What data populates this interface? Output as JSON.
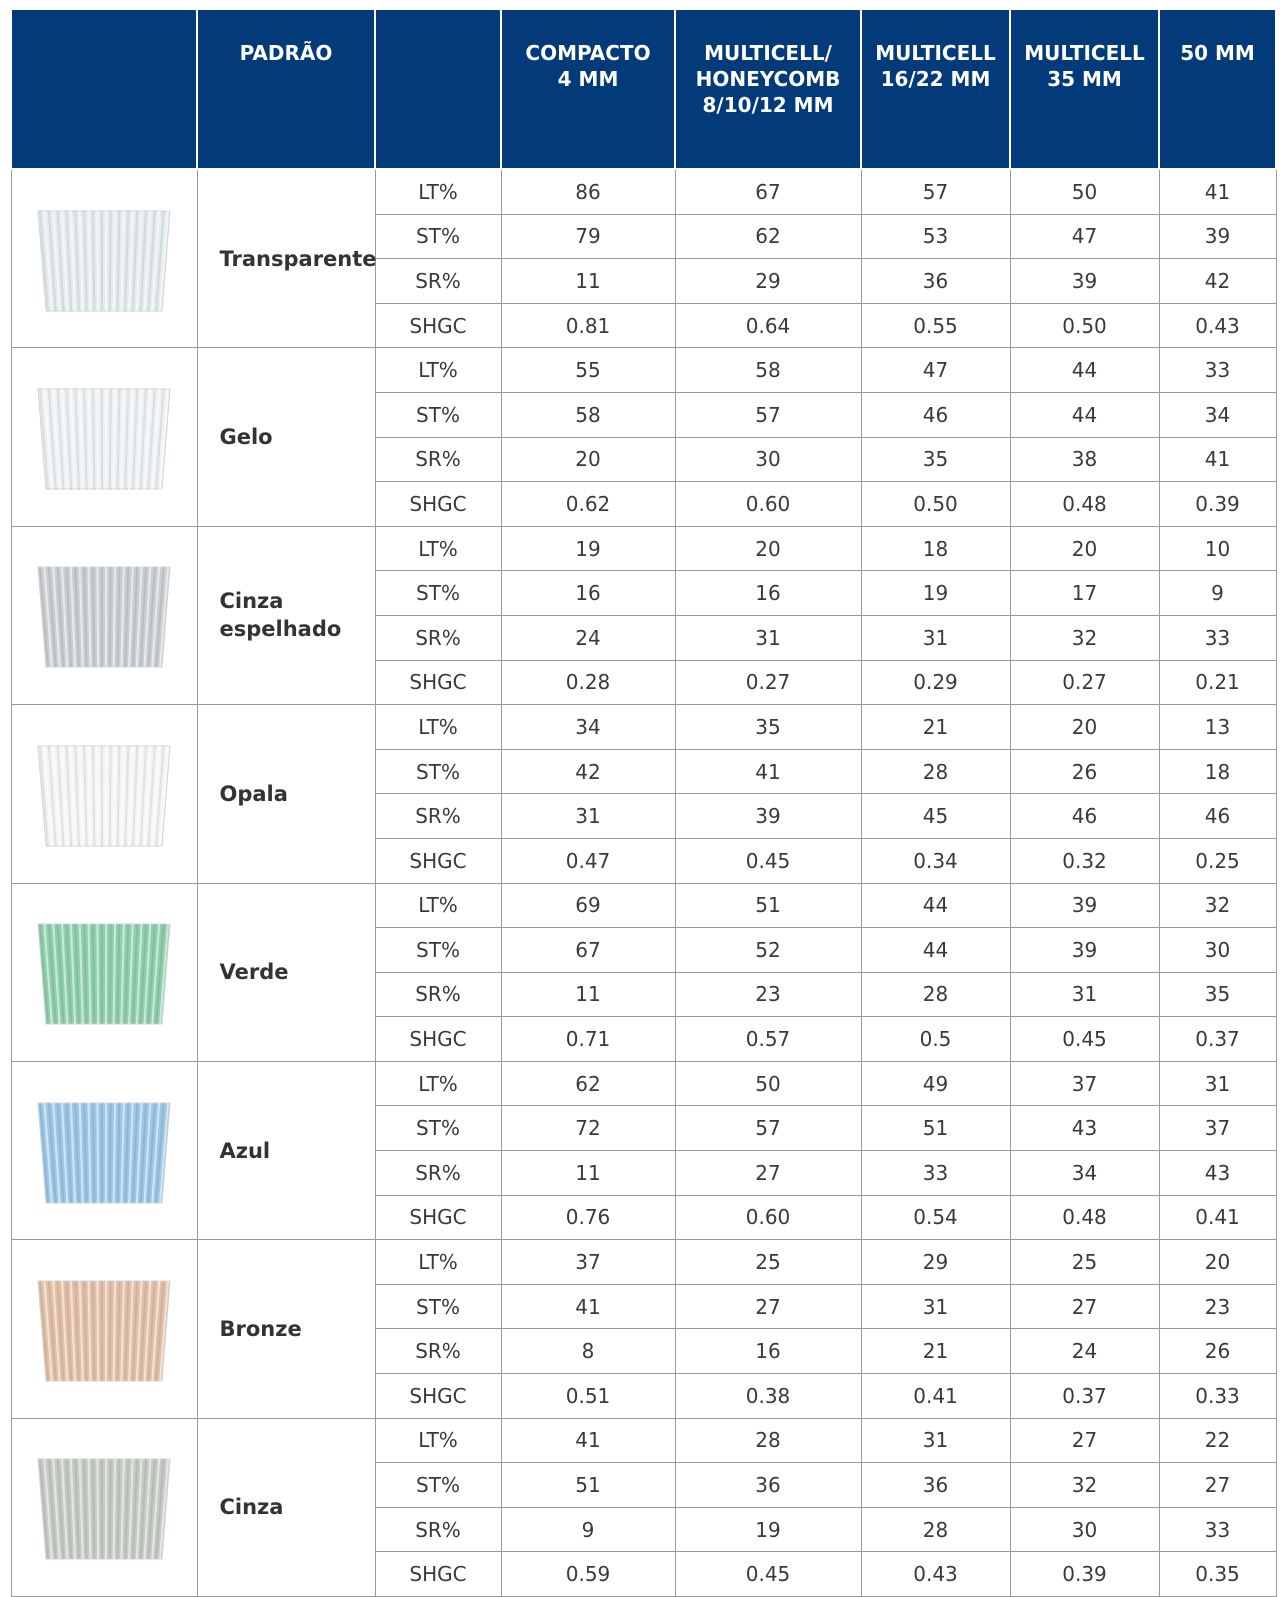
{
  "table": {
    "header": [
      "PADRÃO",
      "COMPACTO\n4 MM",
      "MULTICELL/\nHONEYCOMB\n8/10/12 MM",
      "MULTICELL\n16/22 MM",
      "MULTICELL\n35 MM",
      "50 MM"
    ],
    "groups": [
      {
        "name": "Transparente",
        "color": "#e4ecef",
        "rows": [
          {
            "label": "LT%",
            "values": [
              "86",
              "67",
              "57",
              "50",
              "41"
            ]
          },
          {
            "label": "ST%",
            "values": [
              "79",
              "62",
              "53",
              "47",
              "39"
            ]
          },
          {
            "label": "SR%",
            "values": [
              "11",
              "29",
              "36",
              "39",
              "42"
            ]
          },
          {
            "label": "SHGC",
            "values": [
              "0.81",
              "0.64",
              "0.55",
              "0.50",
              "0.43"
            ]
          }
        ]
      },
      {
        "name": "Gelo",
        "color": "#eef1f3",
        "rows": [
          {
            "label": "LT%",
            "values": [
              "55",
              "58",
              "47",
              "44",
              "33"
            ]
          },
          {
            "label": "ST%",
            "values": [
              "58",
              "57",
              "46",
              "44",
              "34"
            ]
          },
          {
            "label": "SR%",
            "values": [
              "20",
              "30",
              "35",
              "38",
              "41"
            ]
          },
          {
            "label": "SHGC",
            "values": [
              "0.62",
              "0.60",
              "0.50",
              "0.48",
              "0.39"
            ]
          }
        ]
      },
      {
        "name": "Cinza\nespelhado",
        "color": "#c9ced2",
        "rows": [
          {
            "label": "LT%",
            "values": [
              "19",
              "20",
              "18",
              "20",
              "10"
            ]
          },
          {
            "label": "ST%",
            "values": [
              "16",
              "16",
              "19",
              "17",
              "9"
            ]
          },
          {
            "label": "SR%",
            "values": [
              "24",
              "31",
              "31",
              "32",
              "33"
            ]
          },
          {
            "label": "SHGC",
            "values": [
              "0.28",
              "0.27",
              "0.29",
              "0.27",
              "0.21"
            ]
          }
        ]
      },
      {
        "name": "Opala",
        "color": "#f3f4f5",
        "rows": [
          {
            "label": "LT%",
            "values": [
              "34",
              "35",
              "21",
              "20",
              "13"
            ]
          },
          {
            "label": "ST%",
            "values": [
              "42",
              "41",
              "28",
              "26",
              "18"
            ]
          },
          {
            "label": "SR%",
            "values": [
              "31",
              "39",
              "45",
              "46",
              "46"
            ]
          },
          {
            "label": "SHGC",
            "values": [
              "0.47",
              "0.45",
              "0.34",
              "0.32",
              "0.25"
            ]
          }
        ]
      },
      {
        "name": "Verde",
        "color": "#8fcfad",
        "rows": [
          {
            "label": "LT%",
            "values": [
              "69",
              "51",
              "44",
              "39",
              "32"
            ]
          },
          {
            "label": "ST%",
            "values": [
              "67",
              "52",
              "44",
              "39",
              "30"
            ]
          },
          {
            "label": "SR%",
            "values": [
              "11",
              "23",
              "28",
              "31",
              "35"
            ]
          },
          {
            "label": "SHGC",
            "values": [
              "0.71",
              "0.57",
              "0.5",
              "0.45",
              "0.37"
            ]
          }
        ]
      },
      {
        "name": "Azul",
        "color": "#9cc7e6",
        "rows": [
          {
            "label": "LT%",
            "values": [
              "62",
              "50",
              "49",
              "37",
              "31"
            ]
          },
          {
            "label": "ST%",
            "values": [
              "72",
              "57",
              "51",
              "43",
              "37"
            ]
          },
          {
            "label": "SR%",
            "values": [
              "11",
              "27",
              "33",
              "34",
              "43"
            ]
          },
          {
            "label": "SHGC",
            "values": [
              "0.76",
              "0.60",
              "0.54",
              "0.48",
              "0.41"
            ]
          }
        ]
      },
      {
        "name": "Bronze",
        "color": "#e2c0a8",
        "rows": [
          {
            "label": "LT%",
            "values": [
              "37",
              "25",
              "29",
              "25",
              "20"
            ]
          },
          {
            "label": "ST%",
            "values": [
              "41",
              "27",
              "31",
              "27",
              "23"
            ]
          },
          {
            "label": "SR%",
            "values": [
              "8",
              "16",
              "21",
              "24",
              "26"
            ]
          },
          {
            "label": "SHGC",
            "values": [
              "0.51",
              "0.38",
              "0.41",
              "0.37",
              "0.33"
            ]
          }
        ]
      },
      {
        "name": "Cinza",
        "color": "#c6cbc4",
        "rows": [
          {
            "label": "LT%",
            "values": [
              "41",
              "28",
              "31",
              "27",
              "22"
            ]
          },
          {
            "label": "ST%",
            "values": [
              "51",
              "36",
              "36",
              "32",
              "27"
            ]
          },
          {
            "label": "SR%",
            "values": [
              "9",
              "19",
              "28",
              "30",
              "33"
            ]
          },
          {
            "label": "SHGC",
            "values": [
              "0.59",
              "0.45",
              "0.43",
              "0.39",
              "0.35"
            ]
          }
        ]
      }
    ]
  }
}
